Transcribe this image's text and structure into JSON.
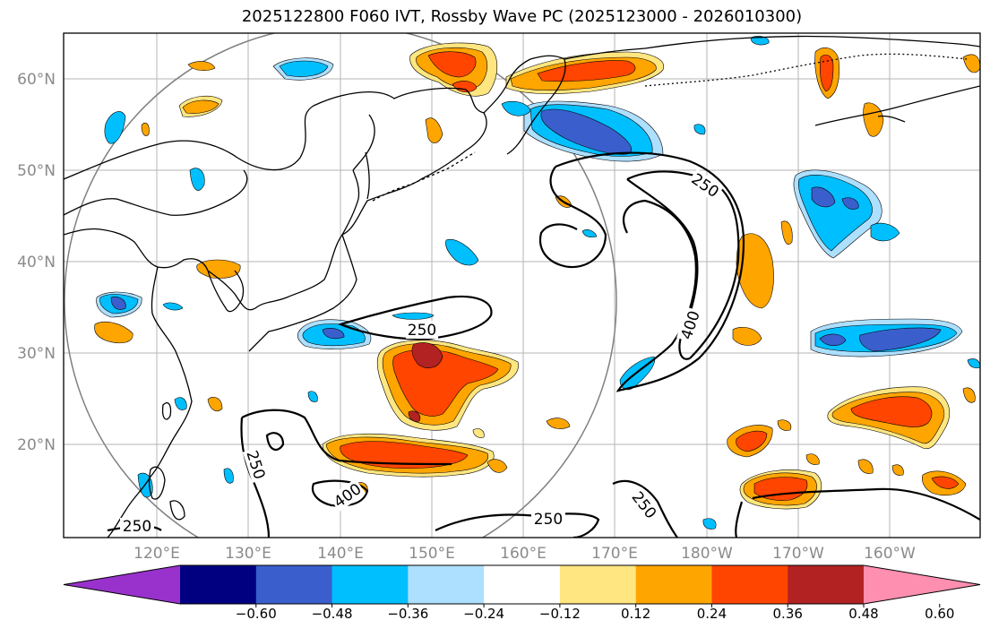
{
  "title": "2025122800 F060 IVT, Rossby Wave PC (2025123000 - 2026010300)",
  "lat_labels": [
    "60°N",
    "50°N",
    "40°N",
    "30°N",
    "20°N"
  ],
  "lon_labels": [
    "120°E",
    "130°E",
    "140°E",
    "150°E",
    "160°E",
    "170°E",
    "180°W",
    "170°W",
    "160°W"
  ],
  "contour_labels": [
    "250",
    "250",
    "400",
    "250",
    "400",
    "250",
    "250",
    "250"
  ],
  "colorbar": {
    "ticks": [
      "−0.60",
      "−0.48",
      "−0.36",
      "−0.24",
      "−0.12",
      "0.12",
      "0.24",
      "0.36",
      "0.48",
      "0.60"
    ],
    "colors": [
      "#9932CC",
      "#000080",
      "#3A5FCD",
      "#00BFFF",
      "#ADDFFF",
      "#FFFFFF",
      "#FFE680",
      "#FFA500",
      "#FF4500",
      "#B22222",
      "#FF8FB0"
    ]
  }
}
